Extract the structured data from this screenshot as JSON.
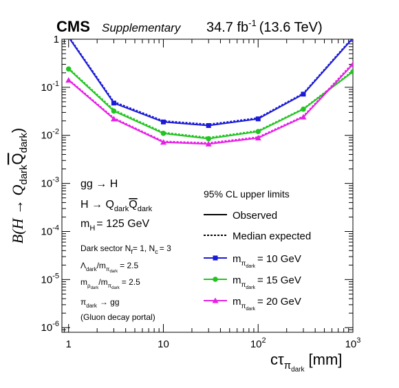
{
  "header": {
    "experiment": "CMS",
    "tag": "Supplementary",
    "lumi_value": "34.7 fb",
    "lumi_exp": "-1",
    "energy": "(13.6 TeV)"
  },
  "axes": {
    "y_label_main": "B(H → Q",
    "y_label_sub1": "dark",
    "y_label_mid": "Q",
    "y_label_sub2": "dark",
    "y_label_close": ")",
    "x_label_main": "cτ",
    "x_label_sub": "π",
    "x_label_subsub": "dark",
    "x_label_unit": "[mm]"
  },
  "left_text": {
    "process": "gg → H",
    "decay": "H → Q",
    "decay_sub1": "dark",
    "decay_bar": "Q",
    "decay_sub2": "dark",
    "mass_main": "m",
    "mass_sub": "H",
    "mass_value": "= 125 GeV",
    "sector": "Dark sector N",
    "sector_f": "f",
    "sector_eq": "= 1,  N",
    "sector_c": "c",
    "sector_val": "= 3",
    "ratio1_a": "Λ",
    "ratio1_a_sub": "dark",
    "ratio1_b": "/m",
    "ratio1_b_sub": "π",
    "ratio1_b_subsub": "dark",
    "ratio1_val": "= 2.5",
    "ratio2_a": "m",
    "ratio2_a_sub": "ρ",
    "ratio2_a_subsub": "dark",
    "ratio2_b": "/m",
    "ratio2_b_sub": "π",
    "ratio2_b_subsub": "dark",
    "ratio2_val": "= 2.5",
    "portal": "π",
    "portal_sub": "dark",
    "portal_arrow": "→ gg",
    "portal_note": "(Gluon decay portal)"
  },
  "legend": {
    "title": "95% CL upper limits",
    "observed": "Observed",
    "expected": "Median expected",
    "entry_prefix": "m",
    "entry_sub": "π",
    "entry_subsub": "dark"
  },
  "chart_data": {
    "type": "line",
    "xscale": "log",
    "yscale": "log",
    "xlim": [
      0.85,
      1000
    ],
    "ylim": [
      8e-07,
      1
    ],
    "x_ticks": [
      "1",
      "10",
      "10^2",
      "10^3"
    ],
    "y_ticks": [
      "10^-6",
      "10^-5",
      "10^-4",
      "10^-3",
      "10^-2",
      "10^-1",
      "1"
    ],
    "x": [
      1,
      3,
      10,
      30,
      100,
      300,
      1000
    ],
    "series": [
      {
        "name": "= 10 GeV",
        "color": "#1a1ad6",
        "marker": "square",
        "observed": [
          1.1,
          0.047,
          0.019,
          0.016,
          0.022,
          0.072,
          1.05
        ],
        "expected": [
          1.15,
          0.05,
          0.02,
          0.017,
          0.023,
          0.075,
          1.1
        ]
      },
      {
        "name": "= 15 GeV",
        "color": "#22c422",
        "marker": "circle",
        "observed": [
          0.24,
          0.032,
          0.011,
          0.0085,
          0.012,
          0.035,
          0.21
        ],
        "expected": [
          0.25,
          0.034,
          0.0115,
          0.009,
          0.0125,
          0.036,
          0.22
        ]
      },
      {
        "name": "= 20 GeV",
        "color": "#e61ee6",
        "marker": "triangle",
        "observed": [
          0.14,
          0.022,
          0.0072,
          0.0066,
          0.0088,
          0.024,
          0.3
        ],
        "expected": [
          0.145,
          0.023,
          0.0075,
          0.007,
          0.0092,
          0.025,
          0.32
        ]
      }
    ]
  }
}
